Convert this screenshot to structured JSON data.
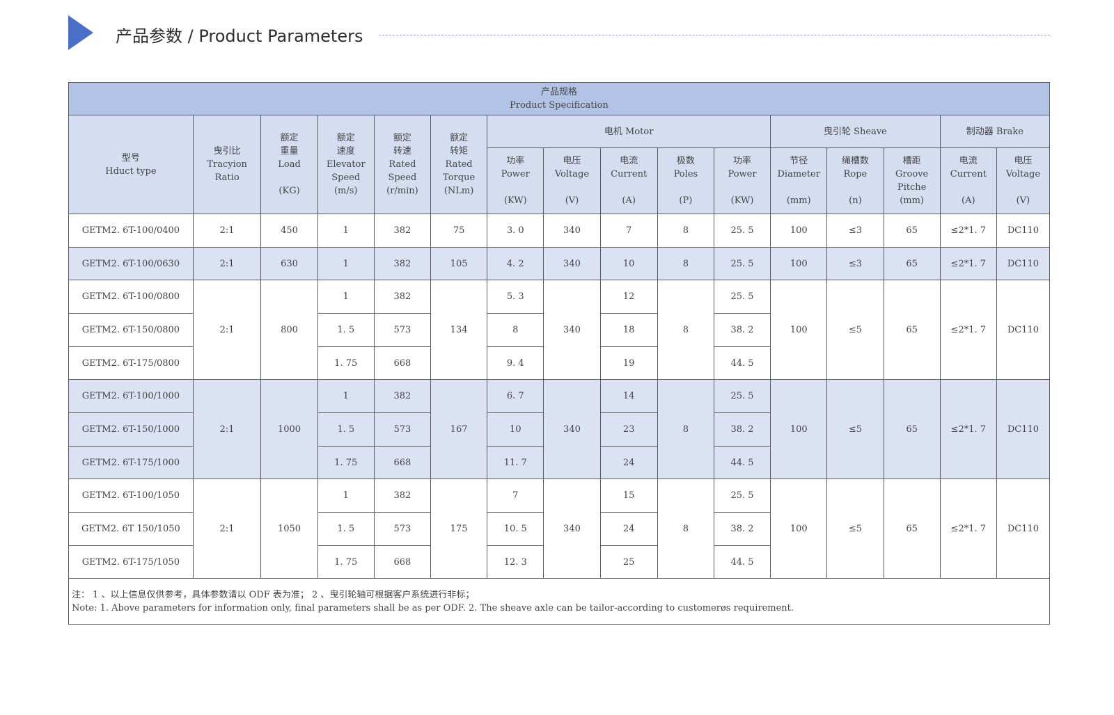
{
  "page": {
    "title": "产品参数 / Product Parameters"
  },
  "table": {
    "caption_cn": "产品规格",
    "caption_en": "Product Specification",
    "groups": {
      "motor": "电机 Motor",
      "sheave": "曳引轮 Sheave",
      "brake": "制动器 Brake"
    },
    "columns": [
      [
        "型号",
        "Hduct type",
        ""
      ],
      [
        "曳引比",
        "Tracyion",
        "Ratio"
      ],
      [
        "额定",
        "重量",
        "Load",
        "(KG)"
      ],
      [
        "额定",
        "速度",
        "Elevator",
        "Speed",
        "(m/s)"
      ],
      [
        "额定",
        "转速",
        "Rated",
        "Speed",
        "(r/min)"
      ],
      [
        "额定",
        "转矩",
        "Rated",
        "Torque",
        "(NLm)"
      ],
      [
        "功率",
        "Power",
        "(KW)"
      ],
      [
        "电压",
        "Voltage",
        "(V)"
      ],
      [
        "电流",
        "Current",
        "(A)"
      ],
      [
        "极数",
        "Poles",
        "(P)"
      ],
      [
        "功率",
        "Power",
        "(KW)"
      ],
      [
        "节径",
        "Diameter",
        "(mm)"
      ],
      [
        "绳槽数",
        "Rope",
        "(n)"
      ],
      [
        "槽距",
        "Groove",
        "Pitche",
        "(mm)"
      ],
      [
        "电流",
        "Current",
        "(A)"
      ],
      [
        "电压",
        "Voltage",
        "(V)"
      ]
    ],
    "row1": [
      "GETM2. 6T-100/0400",
      "2:1",
      "450",
      "1",
      "382",
      "75",
      "3. 0",
      "340",
      "7",
      "8",
      "25. 5",
      "100",
      "≤3",
      "65",
      "≤2*1. 7",
      "DC110"
    ],
    "row2": [
      "GETM2. 6T-100/0630",
      "2:1",
      "630",
      "1",
      "382",
      "105",
      "4. 2",
      "340",
      "10",
      "8",
      "25. 5",
      "100",
      "≤3",
      "65",
      "≤2*1. 7",
      "DC110"
    ],
    "g3": {
      "models": [
        "GETM2. 6T-100/0800",
        "GETM2. 6T-150/0800",
        "GETM2. 6T-175/0800"
      ],
      "ratio": "2:1",
      "load": "800",
      "speeds": [
        "1",
        "1. 5",
        "1. 75"
      ],
      "rpm": [
        "382",
        "573",
        "668"
      ],
      "torque": "134",
      "power": [
        "5. 3",
        "8",
        "9. 4"
      ],
      "voltage": "340",
      "current": [
        "12",
        "18",
        "19"
      ],
      "poles": "8",
      "power2": [
        "25. 5",
        "38. 2",
        "44. 5"
      ],
      "diameter": "100",
      "rope": "≤5",
      "pitch": "65",
      "bcurrent": "≤2*1. 7",
      "bvoltage": "DC110"
    },
    "g4": {
      "models": [
        "GETM2. 6T-100/1000",
        "GETM2. 6T-150/1000",
        "GETM2. 6T-175/1000"
      ],
      "ratio": "2:1",
      "load": "1000",
      "speeds": [
        "1",
        "1. 5",
        "1. 75"
      ],
      "rpm": [
        "382",
        "573",
        "668"
      ],
      "torque": "167",
      "power": [
        "6. 7",
        "10",
        "11. 7"
      ],
      "voltage": "340",
      "current": [
        "14",
        "23",
        "24"
      ],
      "poles": "8",
      "power2": [
        "25. 5",
        "38. 2",
        "44. 5"
      ],
      "diameter": "100",
      "rope": "≤5",
      "pitch": "65",
      "bcurrent": "≤2*1. 7",
      "bvoltage": "DC110"
    },
    "g5": {
      "models": [
        "GETM2. 6T-100/1050",
        "GETM2. 6T 150/1050",
        "GETM2. 6T-175/1050"
      ],
      "ratio": "2:1",
      "load": "1050",
      "speeds": [
        "1",
        "1. 5",
        "1. 75"
      ],
      "rpm": [
        "382",
        "573",
        "668"
      ],
      "torque": "175",
      "power": [
        "7",
        "10. 5",
        "12. 3"
      ],
      "voltage": "340",
      "current": [
        "15",
        "24",
        "25"
      ],
      "poles": "8",
      "power2": [
        "25. 5",
        "38. 2",
        "44. 5"
      ],
      "diameter": "100",
      "rope": "≤5",
      "pitch": "65",
      "bcurrent": "≤2*1. 7",
      "bvoltage": "DC110"
    },
    "note_cn": "注： 1 、以上信息仅供参考，具体参数请以 ODF 表为准； 2 、曳引轮轴可根据客户系统进行非标；",
    "note_en": "Note: 1. Above parameters for information only, final parameters shall be as per ODF. 2. The sheave axle can be tailor-according to customerøs requirement."
  }
}
